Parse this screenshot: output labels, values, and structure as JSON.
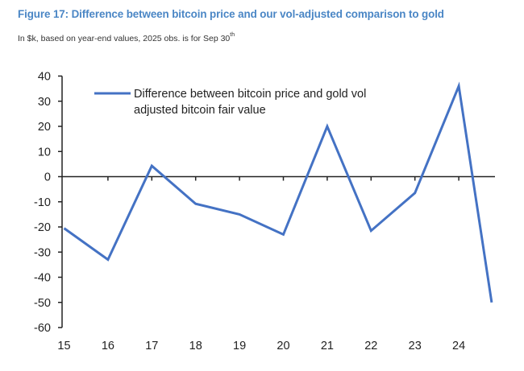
{
  "figure": {
    "title": "Figure 17: Difference between bitcoin price and our vol-adjusted comparison to gold",
    "subtitle_main": "In $k, based on year-end values, 2025 obs. is for Sep 30",
    "subtitle_sup": "th"
  },
  "colors": {
    "title": "#4a86c5",
    "series": "#4472c4",
    "axis": "#222222"
  },
  "chart_data": {
    "type": "line",
    "title": "Figure 17: Difference between bitcoin price and our vol-adjusted comparison to gold",
    "subtitle": "In $k, based on year-end values, 2025 obs. is for Sep 30th",
    "xlabel": "",
    "ylabel": "",
    "ylim": [
      -60,
      40
    ],
    "yticks": [
      40,
      30,
      20,
      10,
      0,
      -10,
      -20,
      -30,
      -40,
      -50,
      -60
    ],
    "xlim": [
      15,
      25
    ],
    "xticks": [
      15,
      16,
      17,
      18,
      19,
      20,
      21,
      22,
      23,
      24
    ],
    "xtick_labels": [
      "15",
      "16",
      "17",
      "18",
      "19",
      "20",
      "21",
      "22",
      "23",
      "24"
    ],
    "grid": false,
    "legend": {
      "placement": "top-left",
      "entries": [
        "Difference between bitcoin price and gold vol adjusted bitcoin fair value"
      ],
      "lines": [
        "Difference between bitcoin price and gold vol",
        "adjusted bitcoin fair value"
      ]
    },
    "series": [
      {
        "name": "Difference between bitcoin price and gold vol adjusted bitcoin fair value",
        "x": [
          15,
          16,
          17,
          18,
          19,
          20,
          21,
          22,
          23,
          24,
          24.75
        ],
        "values": [
          -20.5,
          -33,
          4.3,
          -10.8,
          -15,
          -23,
          20,
          -21.5,
          -6.5,
          36,
          -50
        ]
      }
    ]
  }
}
